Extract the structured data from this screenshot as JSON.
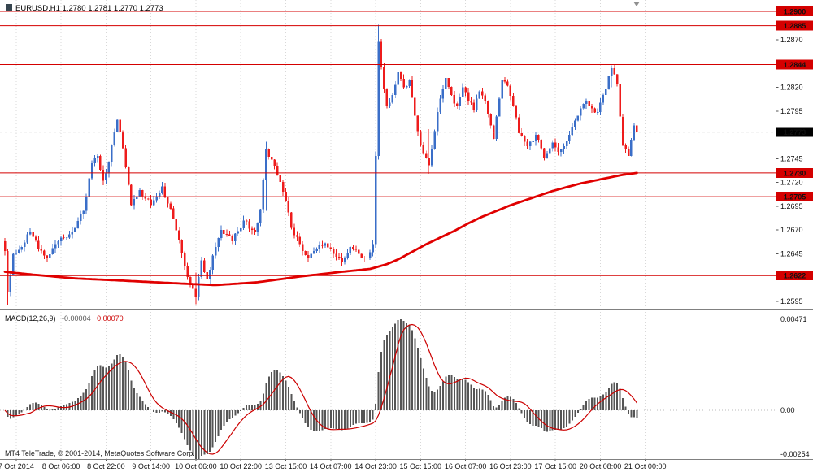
{
  "footer": {
    "credit": "MT4 TeleTrade, © 2001-2014, MetaQuotes Software Corp."
  },
  "colors": {
    "bull": "#3a6ec8",
    "bear": "#ee1c1c",
    "ma": "#e00000",
    "level": "#d40000",
    "current_box": "#000000",
    "histogram": "#555555",
    "signal": "#cc0000",
    "grid": "#d8d8d8"
  },
  "chart_data": [
    {
      "type": "candlestick",
      "symbol": "EURUSD",
      "timeframe": "H1",
      "title": "EURUSD,H1 1.2780 1.2781 1.2770 1.2773",
      "current_bar_ohlc": {
        "open": 1.278,
        "high": 1.2781,
        "low": 1.277,
        "close": 1.2773
      },
      "current_price": 1.2773,
      "bars": 226,
      "first_open": 1.2658,
      "noise": 0.0006,
      "wick": 0.0005,
      "seed": 20141021,
      "price_axis": {
        "min": 1.2588,
        "max": 1.2912,
        "ticks": [
          1.287,
          1.282,
          1.2795,
          1.2745,
          1.272,
          1.2695,
          1.267,
          1.2645,
          1.2595
        ]
      },
      "level_lines": [
        1.29,
        1.2885,
        1.2844,
        1.273,
        1.2705,
        1.2622
      ],
      "close_waypoints": [
        [
          0,
          1.2648
        ],
        [
          1,
          1.2605
        ],
        [
          3,
          1.2645
        ],
        [
          6,
          1.2652
        ],
        [
          9,
          1.2668
        ],
        [
          12,
          1.265
        ],
        [
          15,
          1.264
        ],
        [
          19,
          1.2658
        ],
        [
          22,
          1.2662
        ],
        [
          25,
          1.2672
        ],
        [
          28,
          1.269
        ],
        [
          31,
          1.274
        ],
        [
          33,
          1.2748
        ],
        [
          35,
          1.2722
        ],
        [
          37,
          1.2742
        ],
        [
          40,
          1.2786
        ],
        [
          42,
          1.2756
        ],
        [
          45,
          1.2696
        ],
        [
          48,
          1.2712
        ],
        [
          52,
          1.2696
        ],
        [
          56,
          1.2716
        ],
        [
          60,
          1.2682
        ],
        [
          64,
          1.2632
        ],
        [
          66,
          1.2612
        ],
        [
          68,
          1.26
        ],
        [
          70,
          1.2638
        ],
        [
          72,
          1.2618
        ],
        [
          75,
          1.2652
        ],
        [
          77,
          1.267
        ],
        [
          81,
          1.2658
        ],
        [
          85,
          1.268
        ],
        [
          89,
          1.2668
        ],
        [
          91,
          1.2692
        ],
        [
          93,
          1.2755
        ],
        [
          95,
          1.2744
        ],
        [
          97,
          1.2728
        ],
        [
          100,
          1.27
        ],
        [
          102,
          1.2672
        ],
        [
          105,
          1.2655
        ],
        [
          108,
          1.264
        ],
        [
          111,
          1.265
        ],
        [
          114,
          1.2656
        ],
        [
          117,
          1.2645
        ],
        [
          120,
          1.2636
        ],
        [
          123,
          1.2652
        ],
        [
          126,
          1.2645
        ],
        [
          129,
          1.2641
        ],
        [
          131,
          1.2655
        ],
        [
          132,
          1.2748
        ],
        [
          133,
          1.2868
        ],
        [
          134,
          1.2842
        ],
        [
          136,
          1.28
        ],
        [
          138,
          1.2812
        ],
        [
          140,
          1.2836
        ],
        [
          142,
          1.282
        ],
        [
          144,
          1.2828
        ],
        [
          146,
          1.279
        ],
        [
          148,
          1.276
        ],
        [
          151,
          1.2738
        ],
        [
          153,
          1.2774
        ],
        [
          155,
          1.2808
        ],
        [
          157,
          1.283
        ],
        [
          159,
          1.2812
        ],
        [
          161,
          1.28
        ],
        [
          163,
          1.282
        ],
        [
          165,
          1.2806
        ],
        [
          167,
          1.2796
        ],
        [
          169,
          1.2816
        ],
        [
          171,
          1.2806
        ],
        [
          173,
          1.278
        ],
        [
          174,
          1.2766
        ],
        [
          177,
          1.2828
        ],
        [
          179,
          1.2822
        ],
        [
          181,
          1.28
        ],
        [
          183,
          1.2772
        ],
        [
          186,
          1.2758
        ],
        [
          189,
          1.277
        ],
        [
          192,
          1.2746
        ],
        [
          195,
          1.2762
        ],
        [
          197,
          1.2752
        ],
        [
          199,
          1.2758
        ],
        [
          201,
          1.277
        ],
        [
          204,
          1.279
        ],
        [
          207,
          1.2806
        ],
        [
          209,
          1.2798
        ],
        [
          211,
          1.2794
        ],
        [
          213,
          1.2812
        ],
        [
          215,
          1.2832
        ],
        [
          216,
          1.284
        ],
        [
          218,
          1.2824
        ],
        [
          220,
          1.276
        ],
        [
          222,
          1.2748
        ],
        [
          223,
          1.2765
        ],
        [
          224,
          1.278
        ],
        [
          225,
          1.2773
        ]
      ],
      "wick_overrides": {
        "1": [
          1.265,
          1.2591
        ],
        "68": [
          1.2625,
          1.2592
        ],
        "93": [
          1.2763,
          1.269
        ],
        "133": [
          1.2886,
          1.2744
        ],
        "140": [
          1.2844,
          1.2808
        ],
        "151": [
          1.2776,
          1.2729
        ],
        "216": [
          1.2843,
          1.282
        ],
        "225": [
          1.2781,
          1.277
        ]
      },
      "ma_waypoints": [
        [
          0,
          1.2626
        ],
        [
          10,
          1.2623
        ],
        [
          25,
          1.2619
        ],
        [
          40,
          1.2617
        ],
        [
          60,
          1.2614
        ],
        [
          75,
          1.2612
        ],
        [
          90,
          1.2615
        ],
        [
          105,
          1.2621
        ],
        [
          120,
          1.2626
        ],
        [
          130,
          1.2629
        ],
        [
          136,
          1.2634
        ],
        [
          140,
          1.2639
        ],
        [
          145,
          1.2647
        ],
        [
          150,
          1.2655
        ],
        [
          155,
          1.2662
        ],
        [
          160,
          1.2669
        ],
        [
          165,
          1.2677
        ],
        [
          170,
          1.2684
        ],
        [
          175,
          1.269
        ],
        [
          180,
          1.2696
        ],
        [
          185,
          1.2701
        ],
        [
          190,
          1.2706
        ],
        [
          195,
          1.2711
        ],
        [
          200,
          1.2715
        ],
        [
          205,
          1.2719
        ],
        [
          210,
          1.2722
        ],
        [
          215,
          1.2725
        ],
        [
          220,
          1.2728
        ],
        [
          225,
          1.273
        ]
      ],
      "x_ticks": [
        {
          "bar": 4,
          "label": "7 Oct 2014"
        },
        {
          "bar": 20,
          "label": "8 Oct 06:00"
        },
        {
          "bar": 36,
          "label": "8 Oct 22:00"
        },
        {
          "bar": 52,
          "label": "9 Oct 14:00"
        },
        {
          "bar": 68,
          "label": "10 Oct 06:00"
        },
        {
          "bar": 84,
          "label": "10 Oct 22:00"
        },
        {
          "bar": 100,
          "label": "13 Oct 15:00"
        },
        {
          "bar": 116,
          "label": "14 Oct 07:00"
        },
        {
          "bar": 132,
          "label": "14 Oct 23:00"
        },
        {
          "bar": 148,
          "label": "15 Oct 15:00"
        },
        {
          "bar": 164,
          "label": "16 Oct 07:00"
        },
        {
          "bar": 180,
          "label": "16 Oct 23:00"
        },
        {
          "bar": 196,
          "label": "17 Oct 15:00"
        },
        {
          "bar": 212,
          "label": "20 Oct 08:00"
        },
        {
          "bar": 228,
          "label": "21 Oct 00:00"
        }
      ]
    },
    {
      "type": "macd",
      "params": [
        12,
        26,
        9
      ],
      "label_title": "MACD(12,26,9)",
      "label_value": "-0.00004",
      "label_signal": "0.00070",
      "axis": {
        "max": "0.00471",
        "zero": "0.00",
        "min": "-0.00254"
      }
    }
  ]
}
